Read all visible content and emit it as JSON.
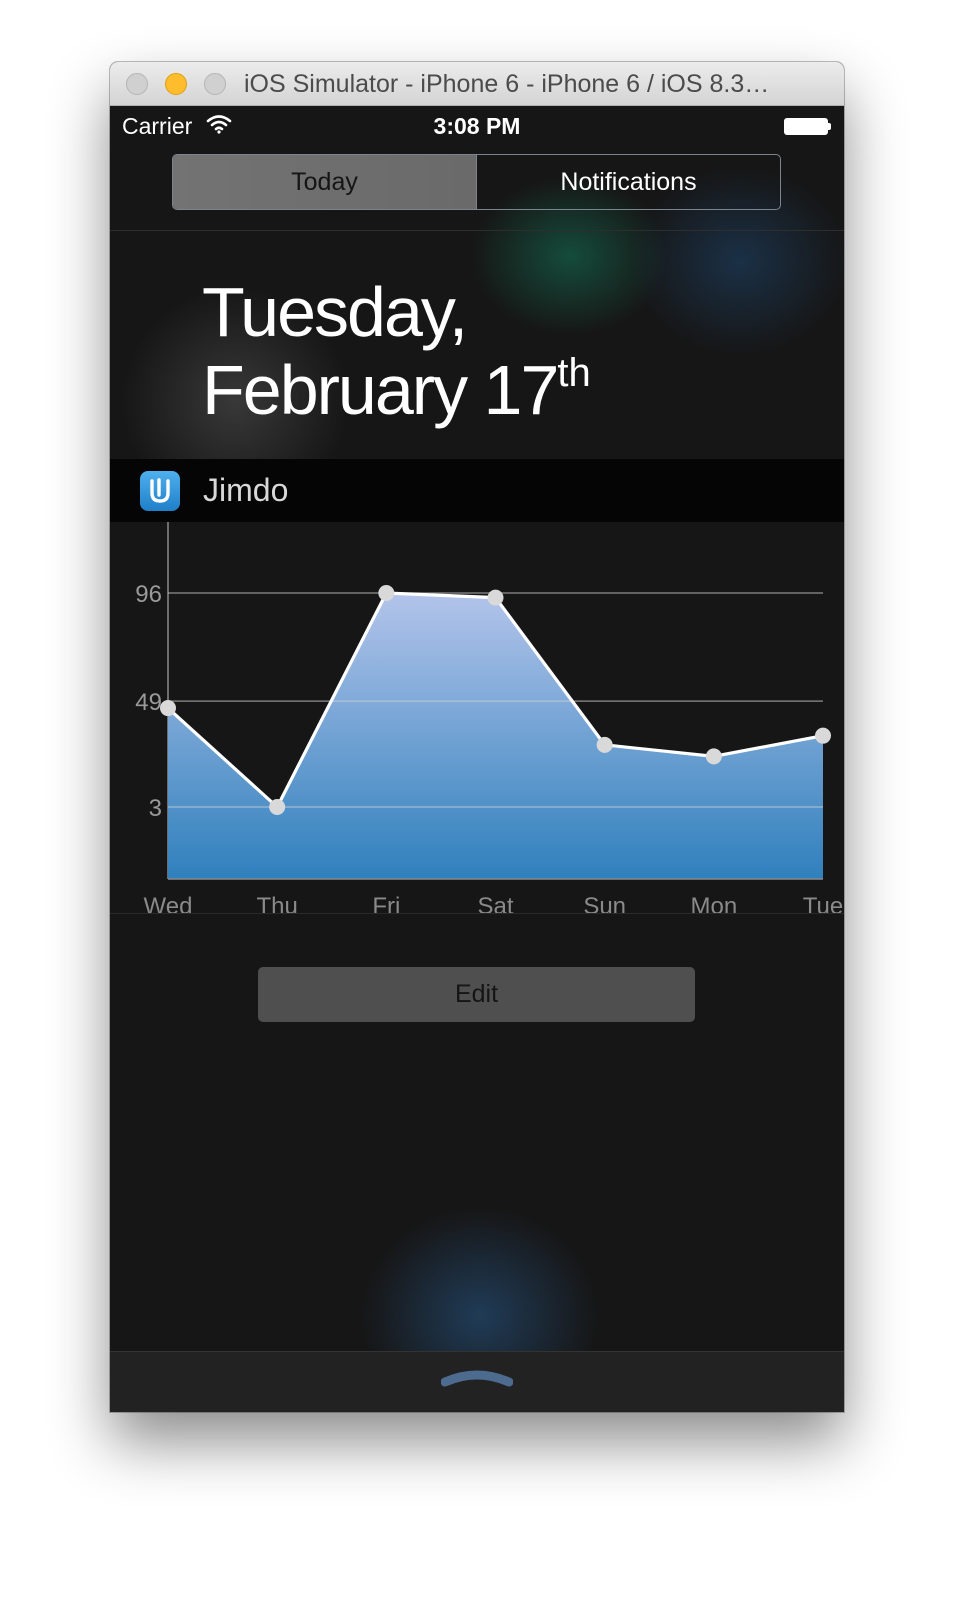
{
  "window": {
    "title": "iOS Simulator - iPhone 6 - iPhone 6 / iOS 8.3…"
  },
  "status_bar": {
    "carrier": "Carrier",
    "time": "3:08 PM",
    "icons": [
      "wifi-icon",
      "battery-icon"
    ]
  },
  "tabs": [
    {
      "label": "Today",
      "selected": true
    },
    {
      "label": "Notifications",
      "selected": false
    }
  ],
  "date": {
    "line1": "Tuesday,",
    "line2": "February 17",
    "suffix": "th"
  },
  "widget": {
    "app_name": "Jimdo",
    "icon": "jimdo-app-icon"
  },
  "chart_data": {
    "type": "area",
    "categories": [
      "Wed",
      "Thu",
      "Fri",
      "Sat",
      "Sun",
      "Mon",
      "Tue"
    ],
    "values": [
      46,
      3,
      96,
      94,
      30,
      25,
      34
    ],
    "yticks": [
      96,
      49,
      3
    ],
    "grid": true,
    "fill_gradient": [
      "#b3c4ea",
      "#2f80bd"
    ],
    "line_color": "#ffffff",
    "marker_color": "#d9d9d9"
  },
  "edit_button": {
    "label": "Edit"
  },
  "bottom": {
    "grabber_icon": "chevron-up-icon"
  }
}
